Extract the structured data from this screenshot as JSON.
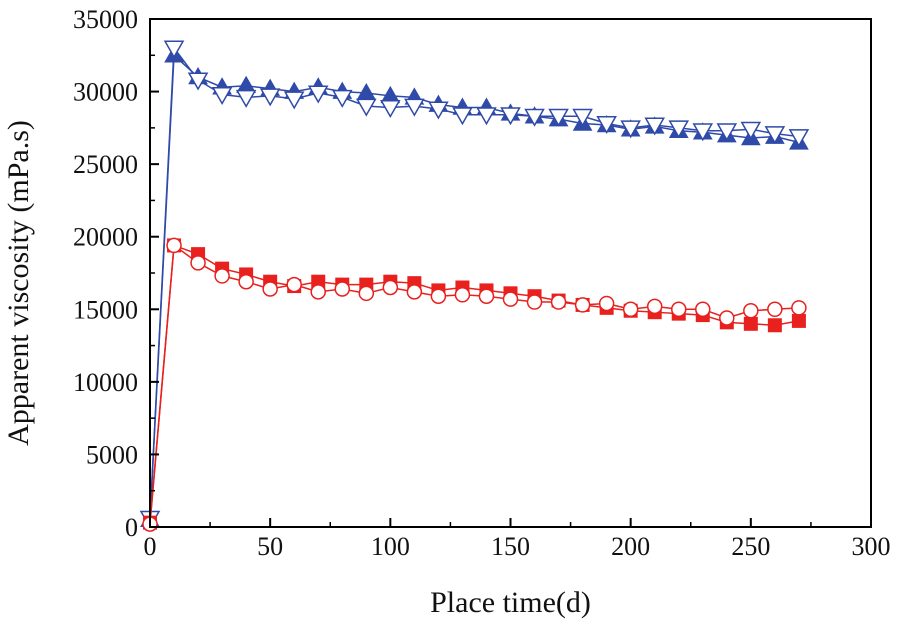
{
  "chart_data": {
    "type": "line",
    "title": "",
    "xlabel": "Place time(d)",
    "ylabel": "Apparent viscosity (mPa.s)",
    "xlim": [
      0,
      300
    ],
    "ylim": [
      0,
      35000
    ],
    "xticks": [
      0,
      50,
      100,
      150,
      200,
      250,
      300
    ],
    "yticks": [
      0,
      5000,
      10000,
      15000,
      20000,
      25000,
      30000,
      35000
    ],
    "grid": false,
    "legend": "none",
    "series": [
      {
        "color": "#2f4aa8",
        "marker": "triangle-up-filled",
        "x": [
          0,
          10,
          20,
          30,
          40,
          50,
          60,
          70,
          80,
          90,
          100,
          110,
          120,
          130,
          140,
          150,
          160,
          170,
          180,
          190,
          200,
          210,
          220,
          230,
          240,
          250,
          260,
          270
        ],
        "y": [
          500,
          32500,
          31000,
          30300,
          30400,
          30200,
          30000,
          30300,
          30000,
          29900,
          29700,
          29600,
          29100,
          28900,
          28900,
          28500,
          28300,
          28100,
          27800,
          27700,
          27400,
          27600,
          27300,
          27200,
          27000,
          26800,
          26900,
          26500
        ]
      },
      {
        "color": "#2f4aa8",
        "marker": "triangle-down-open",
        "x": [
          0,
          10,
          20,
          30,
          40,
          50,
          60,
          70,
          80,
          90,
          100,
          110,
          120,
          130,
          140,
          150,
          160,
          170,
          180,
          190,
          200,
          210,
          220,
          230,
          240,
          250,
          260,
          270
        ],
        "y": [
          600,
          33000,
          30800,
          29800,
          29600,
          29700,
          29500,
          29900,
          29600,
          29000,
          28900,
          29000,
          28800,
          28400,
          28400,
          28400,
          28300,
          28300,
          28300,
          27800,
          27500,
          27700,
          27500,
          27300,
          27300,
          27400,
          27100,
          26900
        ]
      },
      {
        "color": "#e8201e",
        "marker": "square-filled",
        "x": [
          0,
          10,
          20,
          30,
          40,
          50,
          60,
          70,
          80,
          90,
          100,
          110,
          120,
          130,
          140,
          150,
          160,
          170,
          180,
          190,
          200,
          210,
          220,
          230,
          240,
          250,
          260,
          270
        ],
        "y": [
          300,
          19400,
          18800,
          17800,
          17400,
          16900,
          16600,
          16900,
          16700,
          16700,
          16900,
          16800,
          16300,
          16500,
          16300,
          16100,
          15900,
          15600,
          15300,
          15100,
          14900,
          14800,
          14700,
          14600,
          14100,
          14000,
          13900,
          14200
        ]
      },
      {
        "color": "#e8201e",
        "marker": "circle-open",
        "x": [
          0,
          10,
          20,
          30,
          40,
          50,
          60,
          70,
          80,
          90,
          100,
          110,
          120,
          130,
          140,
          150,
          160,
          170,
          180,
          190,
          200,
          210,
          220,
          230,
          240,
          250,
          260,
          270
        ],
        "y": [
          200,
          19400,
          18200,
          17300,
          16900,
          16400,
          16700,
          16200,
          16400,
          16100,
          16500,
          16200,
          15900,
          16000,
          15900,
          15700,
          15500,
          15500,
          15300,
          15400,
          15000,
          15200,
          15000,
          15000,
          14400,
          14900,
          15000,
          15100
        ]
      }
    ]
  }
}
